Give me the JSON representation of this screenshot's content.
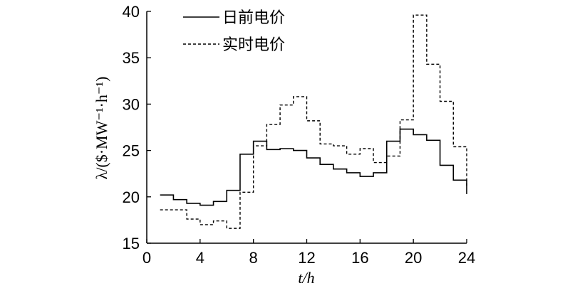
{
  "chart_data": {
    "type": "line",
    "step": true,
    "xlabel": "t/h",
    "ylabel": "λ/($·MW⁻¹·h⁻¹)",
    "xlim": [
      0,
      24
    ],
    "ylim": [
      15,
      40
    ],
    "xticks": [
      0,
      4,
      8,
      12,
      16,
      20,
      24
    ],
    "yticks": [
      15,
      20,
      25,
      30,
      35,
      40
    ],
    "grid": false,
    "legend_position": "top-left",
    "x": [
      1,
      2,
      3,
      4,
      5,
      6,
      7,
      8,
      9,
      10,
      11,
      12,
      13,
      14,
      15,
      16,
      17,
      18,
      19,
      20,
      21,
      22,
      23,
      24
    ],
    "series": [
      {
        "name": "日前电价",
        "style": "solid",
        "values": [
          20.2,
          19.7,
          19.3,
          19.1,
          19.5,
          20.7,
          24.6,
          26.0,
          25.1,
          25.2,
          25.0,
          24.2,
          23.5,
          23.0,
          22.6,
          22.2,
          22.6,
          26.0,
          27.3,
          26.7,
          26.1,
          23.4,
          21.8,
          20.3
        ]
      },
      {
        "name": "实时电价",
        "style": "dashed",
        "values": [
          18.6,
          18.6,
          17.6,
          17.0,
          17.4,
          16.6,
          20.5,
          25.5,
          27.8,
          29.9,
          30.8,
          28.2,
          25.7,
          25.5,
          24.6,
          25.2,
          23.7,
          24.4,
          28.3,
          39.6,
          34.3,
          30.3,
          25.4,
          21.2
        ]
      }
    ]
  }
}
